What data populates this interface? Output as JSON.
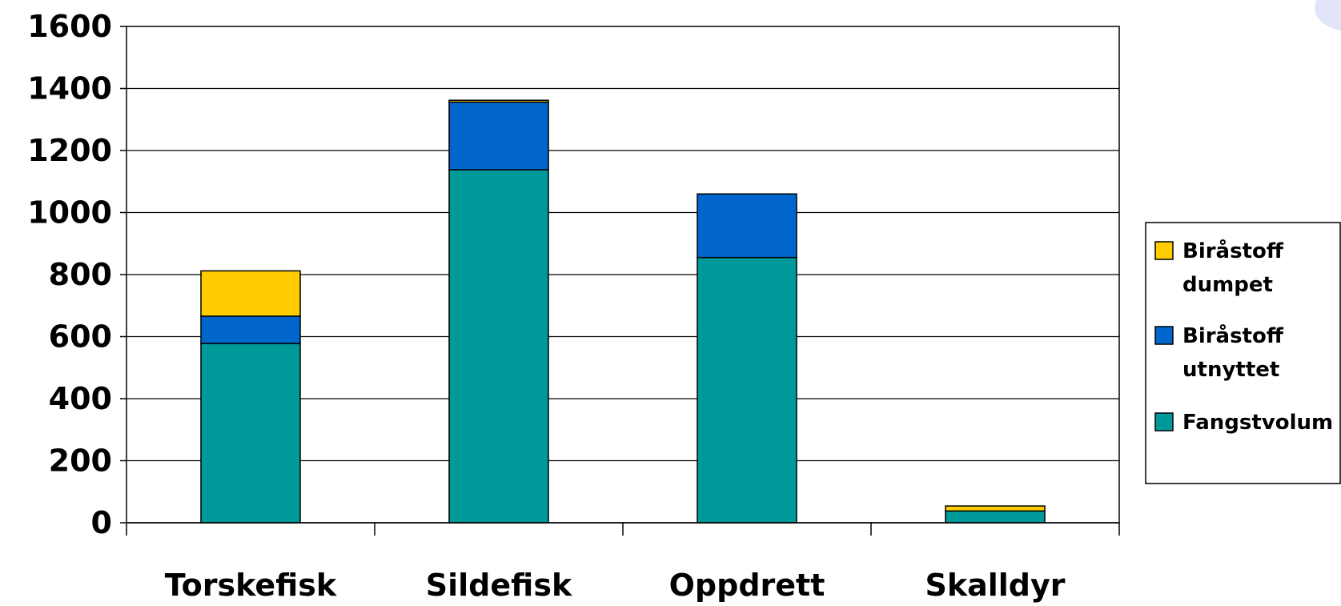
{
  "chart_data": {
    "type": "bar",
    "stacked": true,
    "categories": [
      "Torskefisk",
      "Sildefisk",
      "Oppdrett",
      "Skalldyr"
    ],
    "series": [
      {
        "name": "Fangstvolum",
        "color": "#009999",
        "values": [
          578,
          1138,
          855,
          38
        ]
      },
      {
        "name": "Biråstoff utnyttet",
        "color": "#0066CC",
        "values": [
          88,
          218,
          205,
          0
        ]
      },
      {
        "name": "Biråstoff dumpet",
        "color": "#FFCC00",
        "values": [
          146,
          6,
          0,
          16
        ]
      }
    ],
    "legend_order": [
      {
        "series": 2,
        "lines": [
          "Biråstoff",
          "dumpet"
        ]
      },
      {
        "series": 1,
        "lines": [
          "Biråstoff",
          "utnyttet"
        ]
      },
      {
        "series": 0,
        "lines": [
          "Fangstvolum"
        ]
      }
    ],
    "ylim": [
      0,
      1600
    ],
    "yticks": [
      0,
      200,
      400,
      600,
      800,
      1000,
      1200,
      1400,
      1600
    ],
    "title": "",
    "xlabel": "",
    "ylabel": "",
    "grid": "horizontal",
    "legend_position": "right"
  }
}
